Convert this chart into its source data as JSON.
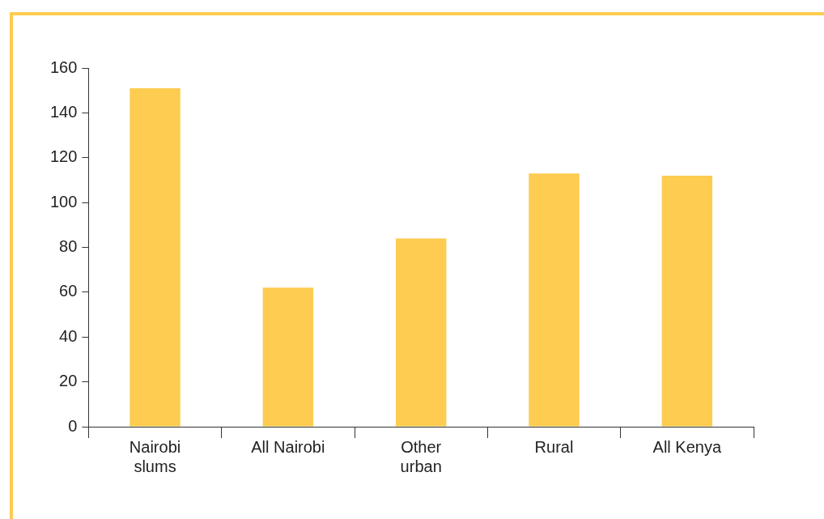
{
  "chart_data": {
    "type": "bar",
    "categories": [
      "Nairobi slums",
      "All Nairobi",
      "Other urban",
      "Rural",
      "All Kenya"
    ],
    "values": [
      151,
      62,
      84,
      113,
      112
    ],
    "color": "#fdcc50",
    "ylim": [
      0,
      160
    ],
    "yticks": [
      0,
      20,
      40,
      60,
      80,
      100,
      120,
      140,
      160
    ],
    "grid": false,
    "legend": false
  }
}
